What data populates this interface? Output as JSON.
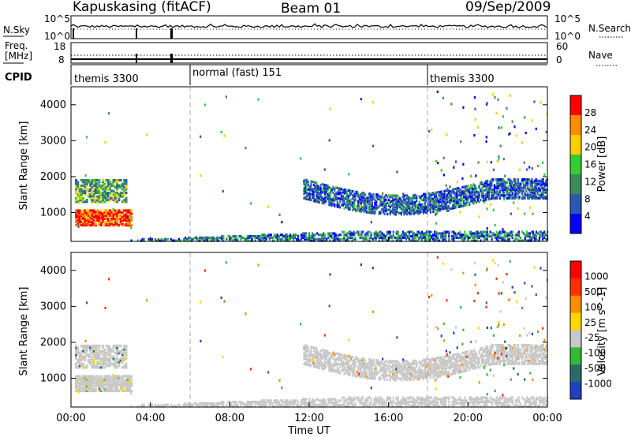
{
  "header": {
    "station": "Kapuskasing (fitACF)",
    "beam": "Beam 01",
    "date": "09/Sep/2009"
  },
  "noise_panel": {
    "left_label": "N.Sky",
    "right_label": "N.Search",
    "left_ticks": [
      "10^5",
      "10^0"
    ],
    "right_ticks": [
      "10^5",
      "10^0"
    ]
  },
  "freq_panel": {
    "left_label_1": "Freq.",
    "left_label_2": "[MHz]",
    "right_label": "Nave",
    "left_ticks": [
      "18",
      "8"
    ],
    "right_ticks": [
      "60",
      "0"
    ]
  },
  "cpid_panel": {
    "label": "CPID",
    "segments": [
      "themis 3300",
      "normal (fast) 151",
      "themis 3300"
    ]
  },
  "colors": {
    "power": [
      "#0000ff",
      "#2a5ab0",
      "#3d8a5a",
      "#33cc33",
      "#ffcc00",
      "#ff8c00",
      "#ff0000"
    ],
    "velocity": [
      "#2040c0",
      "#2a6a6a",
      "#33bb33",
      "#c8c8c8",
      "#ffd700",
      "#ff8c00",
      "#ff3000",
      "#ff0000"
    ],
    "gray": "#c8c8c8"
  },
  "chart_data": [
    {
      "type": "heatmap",
      "name": "power",
      "ylabel": "Slant Range [km]",
      "xlim": [
        "00:00",
        "24:00"
      ],
      "ylim": [
        200,
        4500
      ],
      "y_ticks": [
        "1000",
        "2000",
        "3000",
        "4000"
      ],
      "colorbar_label": "Power [dB]",
      "colorbar_ticks": [
        "28",
        "24",
        "20",
        "16",
        "12",
        "8",
        "4"
      ],
      "regions": [
        {
          "t_start": 0.2,
          "t_end": 3.0,
          "range_min": 650,
          "range_max": 1100,
          "level": "high"
        },
        {
          "t_start": 0.2,
          "t_end": 2.8,
          "range_min": 1300,
          "range_max": 1900,
          "level": "medium"
        },
        {
          "t_start": 3.0,
          "t_end": 24.0,
          "range_min": 200,
          "range_max": 450,
          "level": "low"
        },
        {
          "t_start": 11.7,
          "t_end": 24.0,
          "range_min": 1100,
          "range_max": 1900,
          "level": "low-medium"
        }
      ]
    },
    {
      "type": "heatmap",
      "name": "velocity",
      "ylabel": "Slant Range [km]",
      "xlabel": "Time UT",
      "xlim": [
        "00:00",
        "24:00"
      ],
      "x_ticks": [
        "00:00",
        "04:00",
        "08:00",
        "12:00",
        "16:00",
        "20:00",
        "00:00"
      ],
      "ylim": [
        200,
        4500
      ],
      "y_ticks": [
        "1000",
        "2000",
        "3000",
        "4000"
      ],
      "colorbar_label": "Velocity [m s^-1]",
      "colorbar_ticks": [
        "1000",
        "500",
        "100",
        "25",
        "-25",
        "-100",
        "-500",
        "-1000"
      ]
    }
  ]
}
